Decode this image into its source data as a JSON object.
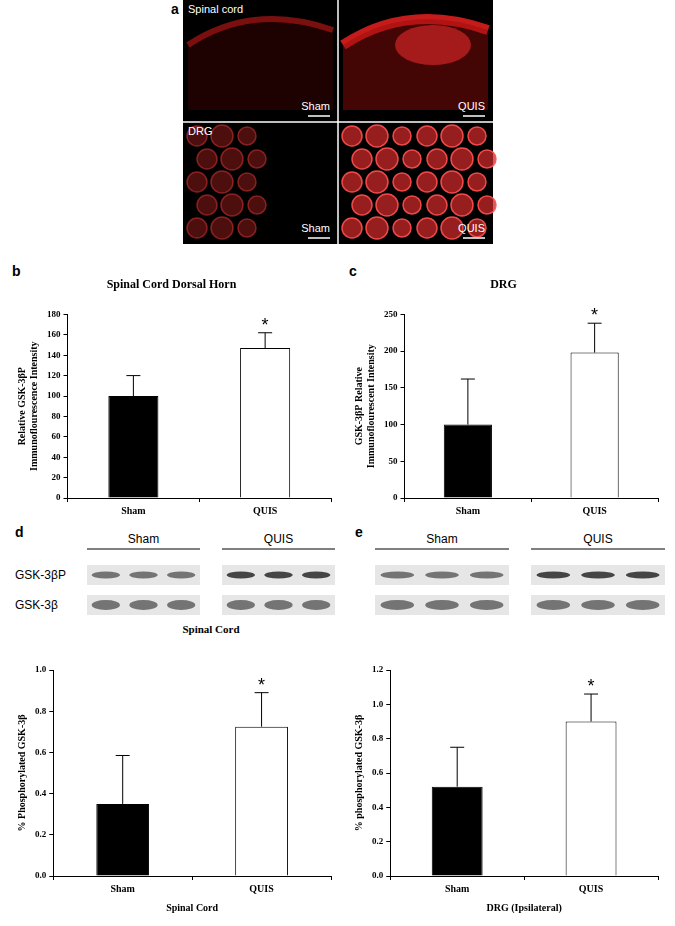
{
  "panels": {
    "a": {
      "label": "a",
      "rows": [
        {
          "name": "Spinal cord",
          "groups": [
            "Sham",
            "QUIS"
          ]
        },
        {
          "name": "DRG",
          "groups": [
            "Sham",
            "QUIS"
          ]
        }
      ]
    },
    "d_blot": {
      "label": "d",
      "groups": [
        "Sham",
        "QUIS"
      ],
      "lanes_per_group": 3,
      "bands": [
        "GSK-3βP",
        "GSK-3β"
      ],
      "caption": "Spinal Cord"
    },
    "e_blot": {
      "label": "e",
      "groups": [
        "Sham",
        "QUIS"
      ],
      "lanes_per_group": 3,
      "bands": [
        null,
        null
      ]
    }
  },
  "chart_data": [
    {
      "type": "bar",
      "label": "b",
      "title": "Spinal Cord Dorsal Horn",
      "ylabel": [
        "Relative GSK-3βP",
        "Immunoflourescence Intensity"
      ],
      "categories": [
        "Sham",
        "QUIS"
      ],
      "values": [
        100,
        147
      ],
      "errors": [
        20,
        15
      ],
      "colors": [
        "#000000",
        "#ffffff"
      ],
      "ylim": [
        0,
        180
      ],
      "yticks": [
        0,
        20,
        40,
        60,
        80,
        100,
        120,
        140,
        160,
        180
      ],
      "grid": false,
      "annotations": [
        {
          "text": "*",
          "category": "QUIS"
        }
      ]
    },
    {
      "type": "bar",
      "label": "c",
      "title": "DRG",
      "ylabel": [
        "GSK-3βP Relative",
        "Immunoflourescent Intensity"
      ],
      "categories": [
        "Sham",
        "QUIS"
      ],
      "values": [
        100,
        198
      ],
      "errors": [
        62,
        40
      ],
      "colors": [
        "#000000",
        "#ffffff"
      ],
      "ylim": [
        0,
        250
      ],
      "yticks": [
        0,
        50,
        100,
        150,
        200,
        250
      ],
      "grid": false,
      "annotations": [
        {
          "text": "*",
          "category": "QUIS"
        }
      ]
    },
    {
      "type": "bar",
      "xlabel": "Spinal Cord",
      "ylabel": "% Phosphorylated GSK-3β",
      "categories": [
        "Sham",
        "QUIS"
      ],
      "values": [
        0.35,
        0.725
      ],
      "errors": [
        0.235,
        0.165
      ],
      "colors": [
        "#000000",
        "#ffffff"
      ],
      "ylim": [
        0,
        1
      ],
      "yticks": [
        {
          "value": 0,
          "label": "0.0"
        },
        0.2,
        0.4,
        0.6,
        0.8,
        {
          "value": 1,
          "label": "1.0"
        }
      ],
      "grid": false,
      "annotations": [
        {
          "text": "*",
          "category": "QUIS"
        }
      ]
    },
    {
      "type": "bar",
      "xlabel": "DRG (Ipsilateral)",
      "ylabel": "% phosphorylated GSK-3β",
      "categories": [
        "Sham",
        "QUIS"
      ],
      "values": [
        0.52,
        0.9
      ],
      "errors": [
        0.23,
        0.16
      ],
      "colors": [
        "#000000",
        "#ffffff"
      ],
      "ylim": [
        0,
        1.2
      ],
      "yticks": [
        {
          "value": 0,
          "label": "0.0"
        },
        0.2,
        0.4,
        0.6,
        0.8,
        {
          "value": 1,
          "label": "1.0"
        },
        1.2
      ],
      "grid": false,
      "annotations": [
        {
          "text": "*",
          "category": "QUIS"
        }
      ]
    }
  ]
}
